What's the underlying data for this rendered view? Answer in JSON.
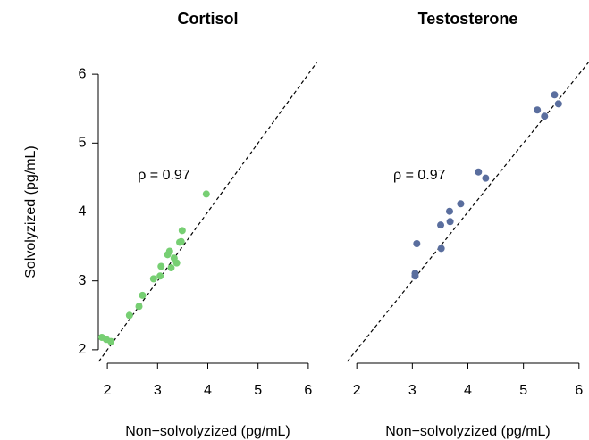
{
  "chart_data": [
    {
      "type": "scatter",
      "title": "Cortisol",
      "annotation": "ρ = 0.97",
      "x_label": "Non−solvolyzized (pg/mL)",
      "y_label": "Solvolyzized (pg/mL)",
      "color": "#77cf73",
      "diagonal": true,
      "x": [
        1.89,
        1.98,
        2.07,
        2.44,
        2.63,
        2.7,
        2.92,
        3.05,
        3.07,
        3.2,
        3.24,
        3.27,
        3.33,
        3.38,
        3.44,
        3.47,
        3.49,
        3.97
      ],
      "values": [
        2.18,
        2.15,
        2.12,
        2.5,
        2.63,
        2.79,
        3.03,
        3.07,
        3.21,
        3.38,
        3.43,
        3.19,
        3.33,
        3.26,
        3.56,
        3.57,
        3.73,
        4.26
      ],
      "xlim": [
        1.82,
        6.18
      ],
      "ylim": [
        1.83,
        6.17
      ],
      "xticks": [
        2,
        3,
        4,
        5,
        6
      ],
      "yticks": [
        2,
        3,
        4,
        5,
        6
      ]
    },
    {
      "type": "scatter",
      "title": "Testosterone",
      "annotation": "ρ = 0.97",
      "x_label": "Non−solvolyzized (pg/mL)",
      "color": "#5a6e9e",
      "diagonal": true,
      "x": [
        3.05,
        3.05,
        3.08,
        3.52,
        3.51,
        3.67,
        3.68,
        3.87,
        4.19,
        4.32,
        5.25,
        5.38,
        5.56,
        5.63
      ],
      "values": [
        3.07,
        3.11,
        3.54,
        3.47,
        3.81,
        4.01,
        3.86,
        4.12,
        4.58,
        4.49,
        5.48,
        5.39,
        5.7,
        5.57
      ],
      "xlim": [
        1.82,
        6.18
      ],
      "ylim": [
        1.83,
        6.17
      ],
      "xticks": [
        2,
        3,
        4,
        5,
        6
      ]
    }
  ]
}
